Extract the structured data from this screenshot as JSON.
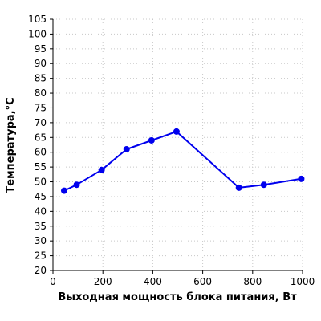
{
  "chart_data": {
    "type": "line",
    "title": "",
    "xlabel": "Выходная мощность блока питания, Вт",
    "ylabel": "Температура,°С",
    "xlim": [
      0,
      1000
    ],
    "ylim": [
      20,
      105
    ],
    "x_ticks": [
      "0",
      "200",
      "400",
      "600",
      "800",
      "1000"
    ],
    "y_ticks": [
      "20",
      "25",
      "30",
      "35",
      "40",
      "45",
      "50",
      "55",
      "60",
      "65",
      "70",
      "75",
      "80",
      "85",
      "90",
      "95",
      "100",
      "105"
    ],
    "grid": true,
    "series": [
      {
        "color": "#0000ee",
        "points": [
          {
            "x": 45,
            "y": 47
          },
          {
            "x": 95,
            "y": 49
          },
          {
            "x": 195,
            "y": 54
          },
          {
            "x": 295,
            "y": 61
          },
          {
            "x": 395,
            "y": 64
          },
          {
            "x": 495,
            "y": 67
          },
          {
            "x": 745,
            "y": 48
          },
          {
            "x": 845,
            "y": 49
          },
          {
            "x": 995,
            "y": 51
          }
        ]
      }
    ]
  }
}
